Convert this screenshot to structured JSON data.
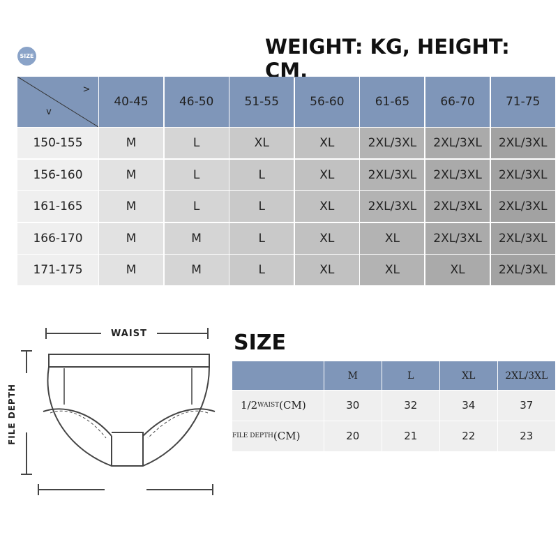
{
  "badge": "SIZE",
  "heading": "WEIGHT: KG, HEIGHT: CM.",
  "size_table": {
    "corner": [
      ">",
      "v"
    ],
    "columns": [
      "40-45",
      "46-50",
      "51-55",
      "56-60",
      "61-65",
      "66-70",
      "71-75"
    ],
    "rows": [
      {
        "label": "150-155",
        "cells": [
          "M",
          "L",
          "XL",
          "XL",
          "2XL/3XL",
          "2XL/3XL",
          "2XL/3XL"
        ]
      },
      {
        "label": "156-160",
        "cells": [
          "M",
          "L",
          "L",
          "XL",
          "2XL/3XL",
          "2XL/3XL",
          "2XL/3XL"
        ]
      },
      {
        "label": "161-165",
        "cells": [
          "M",
          "L",
          "L",
          "XL",
          "2XL/3XL",
          "2XL/3XL",
          "2XL/3XL"
        ]
      },
      {
        "label": "166-170",
        "cells": [
          "M",
          "M",
          "L",
          "XL",
          "XL",
          "2XL/3XL",
          "2XL/3XL"
        ]
      },
      {
        "label": "171-175",
        "cells": [
          "M",
          "M",
          "L",
          "XL",
          "XL",
          "XL",
          "2XL/3XL"
        ]
      }
    ]
  },
  "diagram": {
    "waist": "WAIST",
    "depth": "FILE DEPTH"
  },
  "measure_title": "SIZE",
  "measure_table": {
    "columns": [
      "M",
      "L",
      "XL",
      "2XL/3XL"
    ],
    "rows": [
      {
        "label": [
          "1/2",
          "WAIST",
          "(CM)"
        ],
        "cells": [
          30,
          32,
          34,
          37
        ]
      },
      {
        "label": [
          "FILE DEPTH",
          "(CM)"
        ],
        "cells": [
          20,
          21,
          22,
          23
        ]
      }
    ]
  }
}
